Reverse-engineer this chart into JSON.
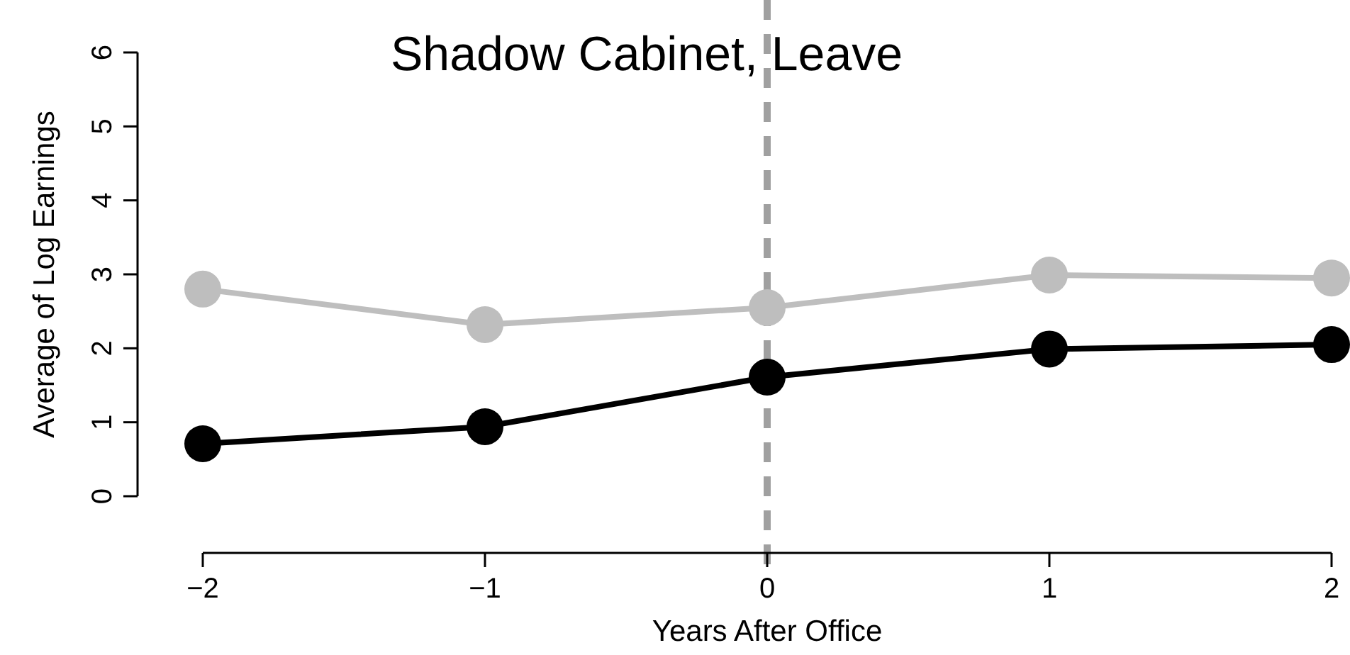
{
  "chart_data": {
    "type": "line",
    "title": "Shadow Cabinet, Leave",
    "xlabel": "Years After Office",
    "ylabel": "Average of Log Earnings",
    "x": [
      -2,
      -1,
      0,
      1,
      2
    ],
    "series": [
      {
        "color": "#bebebe",
        "values": [
          2.8,
          2.32,
          2.55,
          2.99,
          2.95
        ]
      },
      {
        "color": "#000000",
        "values": [
          0.71,
          0.94,
          1.61,
          1.99,
          2.05
        ]
      }
    ],
    "xlim": [
      -2,
      2
    ],
    "ylim": [
      0,
      6
    ],
    "xticks": [
      {
        "value": -2,
        "label": "−2"
      },
      {
        "value": -1,
        "label": "−1"
      },
      0,
      1,
      2
    ],
    "yticks": [
      0,
      1,
      2,
      3,
      4,
      5,
      6
    ],
    "ref_lines": [
      {
        "axis": "x",
        "value": 0,
        "color": "#a0a0a0",
        "line_style": "dashed"
      }
    ],
    "grid": false,
    "legend": false,
    "marker": "circle",
    "line_style": "solid"
  }
}
